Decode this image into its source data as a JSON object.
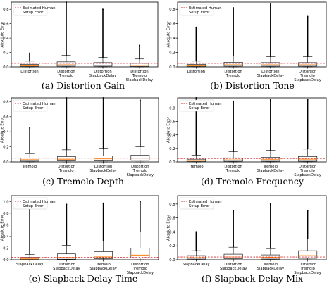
{
  "legend": {
    "label_line1": "Estimated Human",
    "label_line2": "Setup Error"
  },
  "colors": {
    "threshold_line": "#d62728",
    "median": "#ff7f0e",
    "box": "#000000",
    "outlier": "#000000"
  },
  "chart_data": [
    {
      "type": "box",
      "caption": "(a)  Distortion Gain",
      "ylabel": "Absolute Error",
      "ylim": [
        0,
        0.9
      ],
      "yticks": [
        0.0,
        0.2,
        0.4,
        0.6,
        0.8
      ],
      "threshold": 0.05,
      "categories": [
        [
          "Distortion"
        ],
        [
          "Distortion",
          "Tremolo"
        ],
        [
          "Distortion",
          "SlapbackDelay"
        ],
        [
          "Distortion",
          "Tremolo",
          "SlapbackDelay"
        ]
      ],
      "boxes": [
        {
          "whislo": 0.0,
          "q1": 0.005,
          "med": 0.015,
          "q3": 0.035,
          "whishi": 0.08,
          "fliermax": 0.19
        },
        {
          "whislo": 0.0,
          "q1": 0.01,
          "med": 0.03,
          "q3": 0.07,
          "whishi": 0.16,
          "fliermax": 0.9
        },
        {
          "whislo": 0.0,
          "q1": 0.01,
          "med": 0.025,
          "q3": 0.06,
          "whishi": 0.13,
          "fliermax": 0.8
        },
        {
          "whislo": 0.0,
          "q1": 0.005,
          "med": 0.02,
          "q3": 0.05,
          "whishi": 0.11,
          "fliermax": 0.3
        }
      ]
    },
    {
      "type": "box",
      "caption": "(b)  Distortion Tone",
      "ylabel": "Absolute Error",
      "ylim": [
        0,
        0.9
      ],
      "yticks": [
        0.0,
        0.2,
        0.4,
        0.6,
        0.8
      ],
      "threshold": 0.05,
      "categories": [
        [
          "Distortion"
        ],
        [
          "Distortion",
          "Tremolo"
        ],
        [
          "Distortion",
          "SlapbackDelay"
        ],
        [
          "Distortion",
          "Tremolo",
          "SlapbackDelay"
        ]
      ],
      "boxes": [
        {
          "whislo": 0.0,
          "q1": 0.005,
          "med": 0.015,
          "q3": 0.035,
          "whishi": 0.08,
          "fliermax": 0.55
        },
        {
          "whislo": 0.0,
          "q1": 0.01,
          "med": 0.03,
          "q3": 0.065,
          "whishi": 0.15,
          "fliermax": 0.82
        },
        {
          "whislo": 0.0,
          "q1": 0.01,
          "med": 0.03,
          "q3": 0.06,
          "whishi": 0.14,
          "fliermax": 0.88
        },
        {
          "whislo": 0.0,
          "q1": 0.01,
          "med": 0.03,
          "q3": 0.06,
          "whishi": 0.14,
          "fliermax": 0.7
        }
      ]
    },
    {
      "type": "box",
      "caption": "(c)  Tremolo Depth",
      "ylabel": "Absolute Error",
      "ylim": [
        0,
        0.85
      ],
      "yticks": [
        0.0,
        0.2,
        0.4,
        0.6,
        0.8
      ],
      "threshold": 0.05,
      "categories": [
        [
          "Tremolo"
        ],
        [
          "Distortion",
          "Tremolo"
        ],
        [
          "Distortion",
          "SlapbackDelay"
        ],
        [
          "Distortion",
          "Tremolo",
          "SlapbackDelay"
        ]
      ],
      "boxes": [
        {
          "whislo": 0.0,
          "q1": 0.01,
          "med": 0.03,
          "q3": 0.05,
          "whishi": 0.11,
          "fliermax": 0.45
        },
        {
          "whislo": 0.0,
          "q1": 0.015,
          "med": 0.035,
          "q3": 0.07,
          "whishi": 0.16,
          "fliermax": 0.85
        },
        {
          "whislo": 0.0,
          "q1": 0.015,
          "med": 0.04,
          "q3": 0.08,
          "whishi": 0.18,
          "fliermax": 0.85
        },
        {
          "whislo": 0.0,
          "q1": 0.02,
          "med": 0.05,
          "q3": 0.09,
          "whishi": 0.2,
          "fliermax": 0.82
        }
      ]
    },
    {
      "type": "box",
      "caption": "(d)  Tremolo Frequency",
      "ylabel": "Absolute Error",
      "ylim": [
        0,
        0.95
      ],
      "yticks": [
        0.0,
        0.2,
        0.4,
        0.6,
        0.8
      ],
      "threshold": 0.05,
      "categories": [
        [
          "Tremolo"
        ],
        [
          "Distortion",
          "Tremolo"
        ],
        [
          "Tremolo",
          "SlapbackDelay"
        ],
        [
          "Distortion",
          "Tremolo",
          "SlapbackDelay"
        ]
      ],
      "boxes": [
        {
          "whislo": 0.0,
          "q1": 0.005,
          "med": 0.02,
          "q3": 0.04,
          "whishi": 0.1,
          "fliermax": 0.95
        },
        {
          "whislo": 0.0,
          "q1": 0.01,
          "med": 0.03,
          "q3": 0.06,
          "whishi": 0.15,
          "fliermax": 0.9
        },
        {
          "whislo": 0.0,
          "q1": 0.01,
          "med": 0.035,
          "q3": 0.07,
          "whishi": 0.17,
          "fliermax": 0.92
        },
        {
          "whislo": 0.0,
          "q1": 0.01,
          "med": 0.04,
          "q3": 0.08,
          "whishi": 0.19,
          "fliermax": 0.92
        }
      ]
    },
    {
      "type": "box",
      "caption": "(e)  Slapback Delay Time",
      "ylabel": "Absolute Error",
      "ylim": [
        0,
        1.1
      ],
      "yticks": [
        0.0,
        0.2,
        0.4,
        0.6,
        0.8,
        1.0
      ],
      "threshold": 0.04,
      "categories": [
        [
          "SlapbackDelay"
        ],
        [
          "Distortion",
          "SlapbackDelay"
        ],
        [
          "Tremolo",
          "SlapbackDelay"
        ],
        [
          "Distortion",
          "Tremolo",
          "SlapbackDelay"
        ]
      ],
      "boxes": [
        {
          "whislo": 0.0,
          "q1": 0.005,
          "med": 0.015,
          "q3": 0.04,
          "whishi": 0.09,
          "fliermax": 0.88
        },
        {
          "whislo": 0.0,
          "q1": 0.01,
          "med": 0.04,
          "q3": 0.1,
          "whishi": 0.25,
          "fliermax": 0.95
        },
        {
          "whislo": 0.0,
          "q1": 0.02,
          "med": 0.05,
          "q3": 0.14,
          "whishi": 0.32,
          "fliermax": 0.97
        },
        {
          "whislo": 0.0,
          "q1": 0.03,
          "med": 0.08,
          "q3": 0.2,
          "whishi": 0.48,
          "fliermax": 1.0
        }
      ]
    },
    {
      "type": "box",
      "caption": "(f)  Slapback Delay Mix",
      "ylabel": "Absolute Error",
      "ylim": [
        0,
        0.92
      ],
      "yticks": [
        0.0,
        0.2,
        0.4,
        0.6,
        0.8
      ],
      "threshold": 0.04,
      "categories": [
        [
          "SlapbackDelay"
        ],
        [
          "Distortion",
          "SlapbackDelay"
        ],
        [
          "Tremolo",
          "SlapbackDelay"
        ],
        [
          "Distortion",
          "Tremolo",
          "SlapbackDelay"
        ]
      ],
      "boxes": [
        {
          "whislo": 0.0,
          "q1": 0.01,
          "med": 0.03,
          "q3": 0.06,
          "whishi": 0.13,
          "fliermax": 0.4
        },
        {
          "whislo": 0.0,
          "q1": 0.015,
          "med": 0.04,
          "q3": 0.08,
          "whishi": 0.18,
          "fliermax": 0.7
        },
        {
          "whislo": 0.0,
          "q1": 0.01,
          "med": 0.035,
          "q3": 0.07,
          "whishi": 0.16,
          "fliermax": 0.8
        },
        {
          "whislo": 0.0,
          "q1": 0.02,
          "med": 0.06,
          "q3": 0.13,
          "whishi": 0.3,
          "fliermax": 0.7
        }
      ]
    }
  ]
}
